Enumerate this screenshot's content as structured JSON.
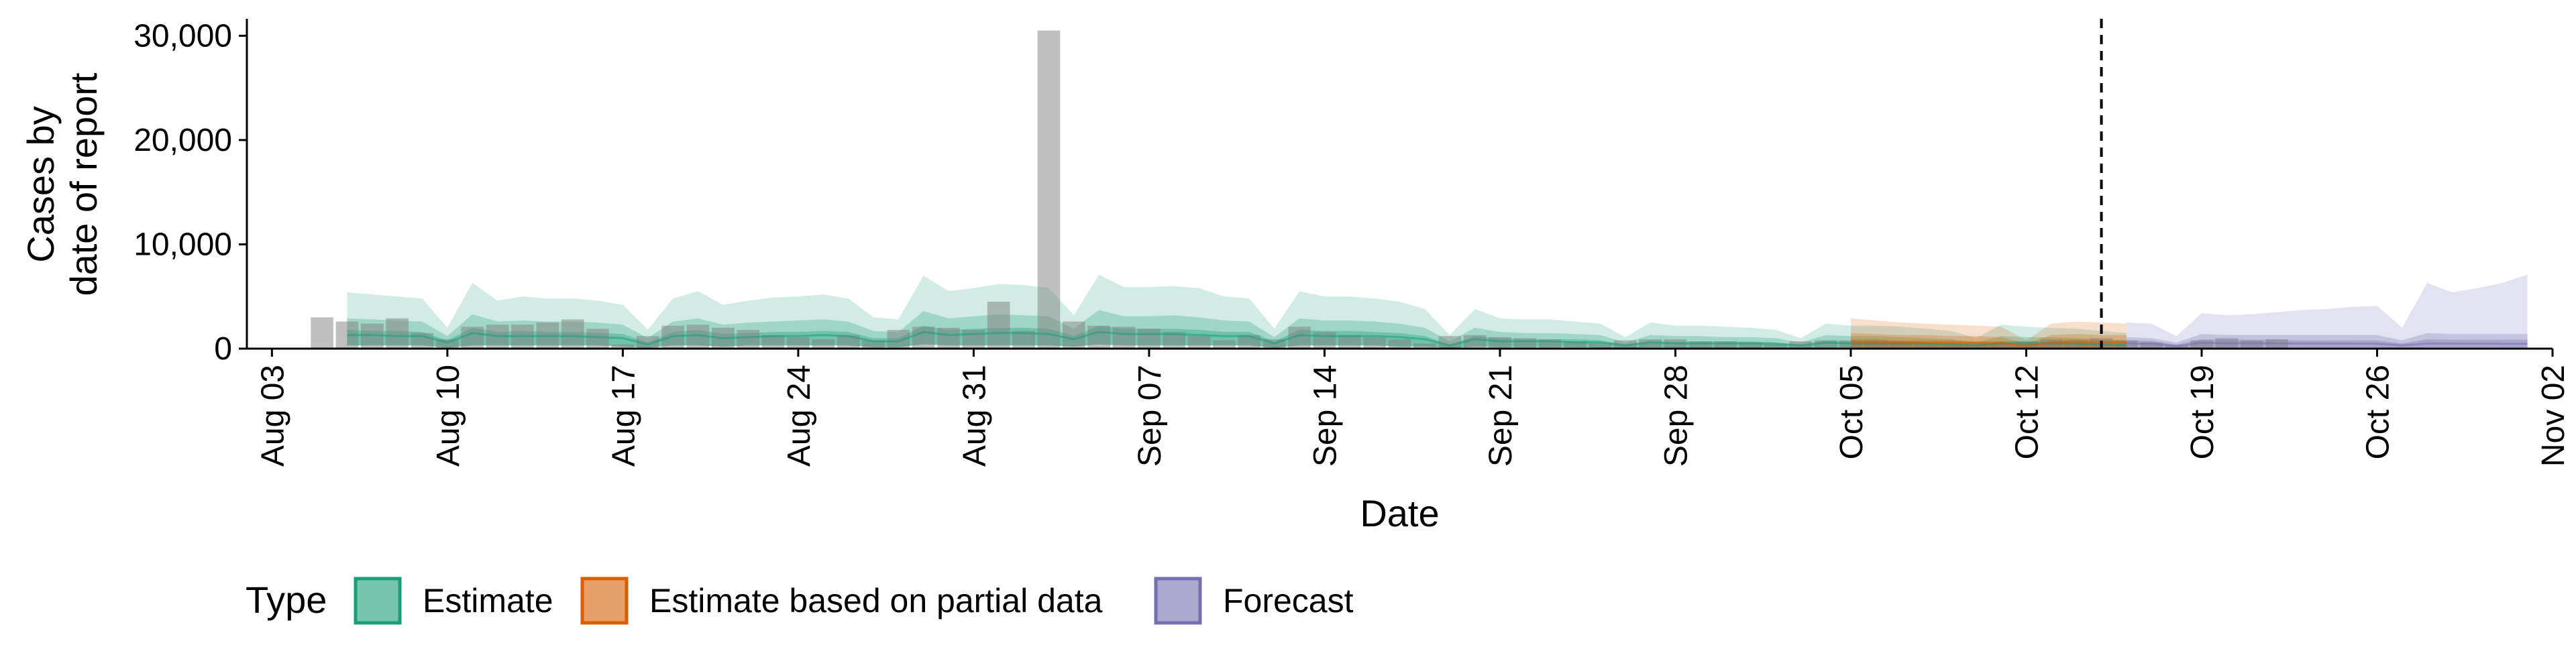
{
  "chart_data": {
    "type": "bar",
    "xlabel": "Date",
    "ylabel_lines": [
      "Cases by",
      "date of report"
    ],
    "ylim": [
      0,
      31500
    ],
    "yticks": [
      0,
      10000,
      20000,
      30000
    ],
    "ytick_labels": [
      "0",
      "10,000",
      "20,000",
      "30,000"
    ],
    "xlim": [
      "2020-08-02",
      "2020-11-02"
    ],
    "xticks": [
      "2020-08-03",
      "2020-08-10",
      "2020-08-17",
      "2020-08-24",
      "2020-08-31",
      "2020-09-07",
      "2020-09-14",
      "2020-09-21",
      "2020-09-28",
      "2020-10-05",
      "2020-10-12",
      "2020-10-19",
      "2020-10-26",
      "2020-11-02"
    ],
    "xtick_labels": [
      "Aug 03",
      "Aug 10",
      "Aug 17",
      "Aug 24",
      "Aug 31",
      "Sep 07",
      "Sep 14",
      "Sep 21",
      "Sep 28",
      "Oct 05",
      "Oct 12",
      "Oct 19",
      "Oct 26",
      "Nov 02"
    ],
    "forecast_start": "2020-10-15",
    "reported_cases": {
      "start_date": "2020-08-05",
      "values": [
        3000,
        2600,
        2400,
        2900,
        1500,
        900,
        2100,
        2300,
        2300,
        2500,
        2800,
        1900,
        400,
        1200,
        2200,
        2300,
        2000,
        1800,
        1300,
        1100,
        900,
        1300,
        800,
        1800,
        2100,
        2000,
        1800,
        4500,
        1700,
        30500,
        2600,
        2200,
        2100,
        1900,
        1600,
        1200,
        800,
        1300,
        900,
        2100,
        1600,
        1300,
        1100,
        900,
        500,
        1200,
        1300,
        1100,
        1000,
        900,
        700,
        500,
        800,
        900,
        900,
        700,
        700,
        600,
        400,
        700,
        800,
        800,
        800,
        600,
        500,
        500,
        500,
        600,
        700,
        900,
        800,
        1000,
        800,
        600,
        300,
        800,
        1000,
        800,
        900
      ]
    },
    "legend": {
      "title": "Type",
      "entries": [
        "Estimate",
        "Estimate based on partial data",
        "Forecast"
      ]
    },
    "series": [
      {
        "name": "Estimate",
        "color": "#1B9E77",
        "start_date": "2020-08-06",
        "ci90_upper": [
          5400,
          5200,
          5000,
          4800,
          2000,
          6300,
          4600,
          5000,
          4800,
          4800,
          4600,
          4200,
          1800,
          4800,
          5500,
          4200,
          4600,
          4900,
          5000,
          5200,
          4800,
          3000,
          2800,
          7000,
          5500,
          5800,
          6200,
          6100,
          5800,
          3200,
          7100,
          5900,
          5900,
          6000,
          5800,
          5000,
          4800,
          1900,
          5500,
          5000,
          5000,
          4800,
          4500,
          3800,
          1300,
          3800,
          2900,
          2800,
          2800,
          2600,
          2400,
          1100,
          2500,
          2200,
          2200,
          2100,
          2000,
          1800,
          1000,
          2400,
          2200,
          2200,
          2100,
          1900,
          1700,
          1000,
          2300,
          2100,
          2000,
          1900,
          1700,
          1500
        ],
        "ci50_upper": [
          2900,
          2800,
          2700,
          2600,
          1200,
          3300,
          2600,
          2700,
          2600,
          2600,
          2500,
          2300,
          1000,
          2600,
          2900,
          2300,
          2500,
          2600,
          2700,
          2800,
          2600,
          1700,
          1600,
          3600,
          2900,
          3100,
          3300,
          3200,
          3100,
          1900,
          3700,
          3100,
          3100,
          3200,
          3000,
          2700,
          2600,
          1100,
          2900,
          2700,
          2700,
          2600,
          2400,
          2000,
          700,
          2000,
          1600,
          1500,
          1500,
          1400,
          1300,
          600,
          1300,
          1200,
          1200,
          1100,
          1100,
          1000,
          600,
          1300,
          1200,
          1200,
          1100,
          1000,
          900,
          600,
          1200,
          1100,
          1100,
          1000,
          900,
          800
        ],
        "ci20_upper": [
          1800,
          1700,
          1700,
          1600,
          800,
          2000,
          1600,
          1700,
          1600,
          1600,
          1500,
          1400,
          600,
          1600,
          1800,
          1400,
          1500,
          1600,
          1600,
          1700,
          1600,
          1000,
          1000,
          2200,
          1800,
          1900,
          2000,
          2000,
          1900,
          1200,
          2200,
          1900,
          1900,
          1900,
          1800,
          1600,
          1600,
          700,
          1800,
          1700,
          1700,
          1600,
          1500,
          1200,
          400,
          1200,
          1000,
          900,
          900,
          900,
          800,
          400,
          800,
          700,
          700,
          700,
          700,
          600,
          400,
          800,
          700,
          700,
          700,
          600,
          600,
          400,
          700,
          700,
          700,
          600,
          600,
          500
        ],
        "median": [
          1300,
          1300,
          1200,
          1200,
          600,
          1500,
          1200,
          1200,
          1200,
          1200,
          1100,
          1000,
          400,
          1200,
          1300,
          1000,
          1100,
          1200,
          1200,
          1300,
          1200,
          700,
          700,
          1600,
          1300,
          1400,
          1500,
          1500,
          1400,
          900,
          1600,
          1400,
          1400,
          1400,
          1300,
          1200,
          1200,
          500,
          1300,
          1200,
          1200,
          1200,
          1100,
          900,
          300,
          900,
          700,
          700,
          700,
          600,
          600,
          300,
          600,
          500,
          500,
          500,
          500,
          450,
          300,
          550,
          500,
          500,
          500,
          450,
          400,
          300,
          500,
          500,
          500,
          450,
          400,
          350
        ],
        "ci_lower": [
          300,
          300,
          300,
          300,
          100,
          300,
          300,
          300,
          300,
          300,
          300,
          200,
          100,
          300,
          300,
          200,
          300,
          300,
          300,
          300,
          300,
          150,
          150,
          400,
          300,
          300,
          300,
          300,
          300,
          200,
          400,
          300,
          300,
          300,
          300,
          300,
          300,
          100,
          300,
          300,
          300,
          300,
          200,
          200,
          50,
          200,
          150,
          150,
          150,
          150,
          100,
          50,
          150,
          100,
          100,
          100,
          100,
          100,
          50,
          100,
          100,
          100,
          100,
          100,
          100,
          50,
          100,
          100,
          100,
          100,
          100,
          80
        ]
      },
      {
        "name": "Estimate based on partial data",
        "color": "#D95F02",
        "start_date": "2020-10-05",
        "ci90_upper": [
          2900,
          2700,
          2500,
          2400,
          2300,
          2200,
          2100,
          800,
          2400,
          2600,
          2500,
          2400
        ],
        "ci50_upper": [
          1500,
          1400,
          1300,
          1300,
          1200,
          1200,
          1100,
          500,
          1300,
          1400,
          1300,
          1300
        ],
        "ci20_upper": [
          900,
          900,
          800,
          800,
          800,
          700,
          700,
          300,
          800,
          900,
          800,
          800
        ],
        "median": [
          650,
          620,
          600,
          580,
          560,
          540,
          520,
          250,
          600,
          650,
          620,
          600
        ],
        "ci_lower": [
          100,
          100,
          100,
          100,
          100,
          100,
          100,
          50,
          100,
          100,
          100,
          100
        ]
      },
      {
        "name": "Forecast",
        "color": "#7570B3",
        "start_date": "2020-10-16",
        "ci90_upper": [
          2500,
          2400,
          1200,
          3400,
          3200,
          3300,
          3500,
          3700,
          3800,
          4000,
          4100,
          2000,
          6300,
          5400,
          5800,
          6300,
          7100
        ],
        "ci50_upper": [
          1100,
          1000,
          600,
          1400,
          1300,
          1300,
          1300,
          1300,
          1300,
          1300,
          1300,
          800,
          1500,
          1400,
          1400,
          1400,
          1400
        ],
        "ci20_upper": [
          800,
          750,
          400,
          900,
          850,
          850,
          850,
          800,
          800,
          800,
          800,
          500,
          900,
          850,
          850,
          850,
          850
        ],
        "median": [
          500,
          480,
          250,
          550,
          530,
          520,
          510,
          500,
          490,
          480,
          470,
          300,
          500,
          490,
          480,
          470,
          460
        ],
        "ci_lower": [
          100,
          100,
          50,
          100,
          100,
          100,
          100,
          100,
          100,
          100,
          100,
          50,
          100,
          100,
          100,
          100,
          100
        ]
      }
    ]
  }
}
